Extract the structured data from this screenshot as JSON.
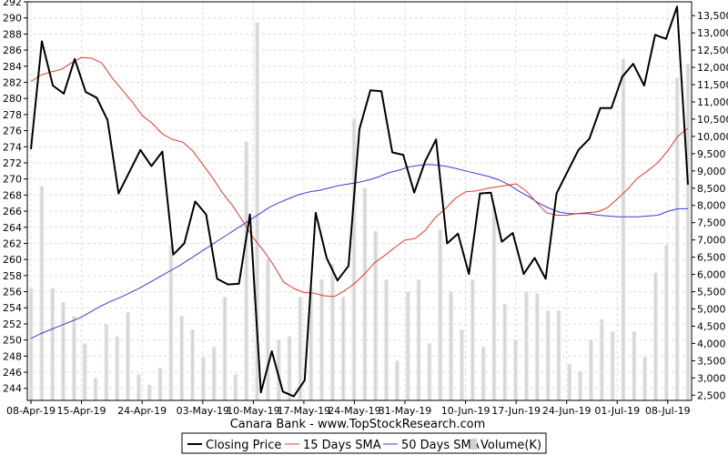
{
  "chart_data": {
    "type": "line",
    "title": "",
    "caption": "Canara Bank - www.TopStockResearch.com",
    "xlabel": "",
    "ylabel": "",
    "x_tick_labels": [
      "08-Apr-19",
      "15-Apr-19",
      "24-Apr-19",
      "03-May-19",
      "10-May-19",
      "17-May-19",
      "24-May-19",
      "31-May-19",
      "10-Jun-19",
      "17-Jun-19",
      "24-Jun-19",
      "01-Jul-19",
      "08-Jul-19"
    ],
    "x_tick_index": [
      0,
      5,
      11,
      17,
      22,
      27,
      32,
      37,
      43,
      48,
      53,
      58,
      63
    ],
    "y_left": {
      "min": 242.5,
      "max": 292,
      "ticks": [
        244,
        246,
        248,
        250,
        252,
        254,
        256,
        258,
        260,
        262,
        264,
        266,
        268,
        270,
        272,
        274,
        276,
        278,
        280,
        282,
        284,
        286,
        288,
        290,
        292
      ]
    },
    "y_right": {
      "min": 2350,
      "max": 13900,
      "ticks": [
        "2,500",
        "3,000",
        "3,500",
        "4,000",
        "4,500",
        "5,000",
        "5,500",
        "6,000",
        "6,500",
        "7,000",
        "7,500",
        "8,000",
        "8,500",
        "9,000",
        "9,500",
        "10,000",
        "10,500",
        "11,000",
        "11,500",
        "12,000",
        "12,500",
        "13,000",
        "13,500"
      ],
      "tick_values": [
        2500,
        3000,
        3500,
        4000,
        4500,
        5000,
        5500,
        6000,
        6500,
        7000,
        7500,
        8000,
        8500,
        9000,
        9500,
        10000,
        10500,
        11000,
        11500,
        12000,
        12500,
        13000,
        13500
      ]
    },
    "grid": true,
    "legend_position": "bottom",
    "series": [
      {
        "name": "Closing Price",
        "color": "#000000",
        "values": [
          273.7,
          287.1,
          281.6,
          280.6,
          284.9,
          280.8,
          280.1,
          277.3,
          268.2,
          270.9,
          273.6,
          271.6,
          273.4,
          260.6,
          262.0,
          267.2,
          265.6,
          257.6,
          256.9,
          257.0,
          265.6,
          243.5,
          248.6,
          243.6,
          243.0,
          245.0,
          265.8,
          260.2,
          257.4,
          259.2,
          276.2,
          281.0,
          280.9,
          273.3,
          273.0,
          268.3,
          272.2,
          274.9,
          262.0,
          263.2,
          258.2,
          268.2,
          268.3,
          262.2,
          263.3,
          258.2,
          260.2,
          257.6,
          268.2,
          270.9,
          273.6,
          275.0,
          278.8,
          278.8,
          282.7,
          284.3,
          281.6,
          287.9,
          287.4,
          291.4,
          269.3
        ]
      },
      {
        "name": "15 Days SMA",
        "color": "#e8352c",
        "values": [
          282.1,
          282.9,
          283.3,
          283.6,
          284.4,
          285.1,
          285.0,
          284.4,
          282.6,
          281.1,
          279.6,
          277.9,
          276.9,
          275.6,
          274.9,
          274.6,
          273.5,
          271.8,
          270.1,
          268.2,
          266.6,
          264.7,
          262.7,
          261.1,
          259.3,
          257.2,
          256.4,
          255.9,
          255.8,
          255.5,
          255.4,
          256.1,
          257.0,
          258.2,
          259.6,
          260.5,
          261.5,
          262.4,
          262.6,
          263.6,
          265.2,
          266.3,
          267.6,
          268.4,
          268.5,
          268.8,
          269.0,
          269.2,
          269.4,
          268.5,
          267.1,
          265.8,
          265.5,
          265.5,
          265.7,
          265.8,
          265.9,
          266.4,
          267.5,
          268.7,
          270.1,
          271.0,
          272.0,
          273.5,
          275.3,
          276.3
        ]
      },
      {
        "name": "50 Days SMA",
        "color": "#3a3ad8",
        "values": [
          250.2,
          250.8,
          251.3,
          251.8,
          252.3,
          252.8,
          253.5,
          254.2,
          254.8,
          255.3,
          255.9,
          256.5,
          257.2,
          257.9,
          258.6,
          259.3,
          260.1,
          260.9,
          261.7,
          262.5,
          263.3,
          264.1,
          264.9,
          265.7,
          266.5,
          267.1,
          267.6,
          268.1,
          268.4,
          268.6,
          268.9,
          269.2,
          269.4,
          269.6,
          269.9,
          270.3,
          270.8,
          271.1,
          271.5,
          271.7,
          271.8,
          271.7,
          271.5,
          271.2,
          270.9,
          270.6,
          270.3,
          269.9,
          269.3,
          268.5,
          267.8,
          267.0,
          266.4,
          265.9,
          265.7,
          265.7,
          265.7,
          265.5,
          265.4,
          265.3,
          265.3,
          265.3,
          265.4,
          265.5,
          266.0,
          266.3,
          266.3
        ]
      },
      {
        "name": "Volume(K)",
        "color": "#d0d0d0",
        "type": "bar",
        "values": [
          5600,
          8550,
          5600,
          5200,
          4800,
          4000,
          3000,
          4550,
          4200,
          4900,
          3100,
          2800,
          3300,
          6850,
          4800,
          4400,
          3600,
          3900,
          5350,
          3100,
          9850,
          13300,
          6450,
          4100,
          4200,
          5350,
          5600,
          5850,
          6300,
          5350,
          10500,
          8500,
          7250,
          5850,
          3500,
          5500,
          5850,
          4000,
          7300,
          5500,
          4400,
          5850,
          3900,
          7950,
          5150,
          4100,
          5500,
          5450,
          4950,
          4950,
          3400,
          3200,
          4100,
          4700,
          4350,
          12250,
          4350,
          3600,
          6050,
          6850,
          11700,
          12100
        ]
      }
    ]
  },
  "legend": {
    "items": [
      {
        "label": "Closing Price"
      },
      {
        "label": "15 Days SMA"
      },
      {
        "label": "50 Days SMA"
      },
      {
        "label": "Volume(K)"
      }
    ]
  }
}
